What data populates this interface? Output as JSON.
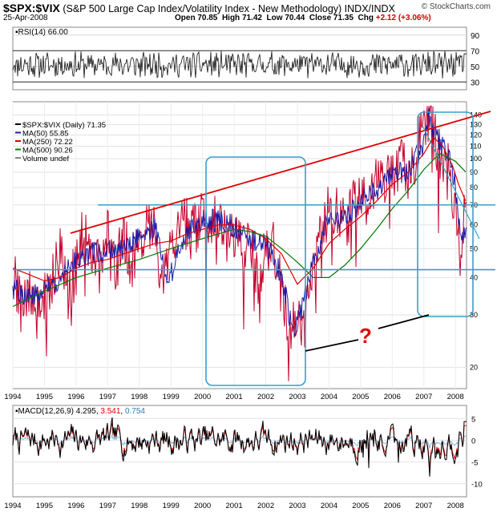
{
  "header": {
    "symbol": "$SPX:$VIX",
    "description": "(S&P 500 Large Cap Index/Volatility Index - New Methodology) INDX/INDX",
    "date": "25-Apr-2008",
    "open_label": "Open",
    "open": "70.85",
    "high_label": "High",
    "high": "71.42",
    "low_label": "Low",
    "low": "70.44",
    "close_label": "Close",
    "close": "71.35",
    "chg_label": "Chg",
    "chg": "+2.12 (+3.06%)",
    "watermark": "© StockCharts.com"
  },
  "chart_data": [
    {
      "type": "line",
      "panel": "RSI",
      "label": "RSI(14) 66.00",
      "y_ticks": [
        30,
        50,
        70,
        90
      ],
      "reference_lines": [
        30,
        70
      ],
      "last": 66.0,
      "ylim": [
        20,
        100
      ],
      "x_ticks": [
        "1994",
        "1995",
        "1996",
        "1997",
        "1998",
        "1999",
        "2000",
        "2001",
        "2002",
        "2003",
        "2004",
        "2005",
        "2006",
        "2007",
        "2008"
      ]
    },
    {
      "type": "line",
      "panel": "Price",
      "log_scale": true,
      "ylim": [
        17,
        155
      ],
      "y_ticks": [
        20,
        30,
        40,
        50,
        60,
        70,
        80,
        90,
        100,
        110,
        120,
        130,
        140
      ],
      "legend": [
        {
          "label": "$SPX:$VIX (Daily) 71.35",
          "color": "#000000"
        },
        {
          "label": "MA(50) 55.85",
          "color": "#1a1aa6"
        },
        {
          "label": "MA(250) 72.22",
          "color": "#dd0000"
        },
        {
          "label": "MA(500) 90.26",
          "color": "#007a00"
        },
        {
          "label": "Volume undef",
          "color": "#888888"
        }
      ],
      "series": [
        {
          "name": "$SPX:$VIX (Daily)",
          "color": "#c4002a",
          "x": [
            1994.0,
            1994.25,
            1994.5,
            1994.75,
            1995.0,
            1995.25,
            1995.5,
            1995.75,
            1996.0,
            1996.25,
            1996.5,
            1996.75,
            1997.0,
            1997.25,
            1997.5,
            1997.75,
            1998.0,
            1998.25,
            1998.5,
            1998.75,
            1999.0,
            1999.25,
            1999.5,
            1999.75,
            2000.0,
            2000.25,
            2000.5,
            2000.75,
            2001.0,
            2001.25,
            2001.5,
            2001.75,
            2002.0,
            2002.25,
            2002.5,
            2002.75,
            2003.0,
            2003.25,
            2003.5,
            2003.75,
            2004.0,
            2004.25,
            2004.5,
            2004.75,
            2005.0,
            2005.25,
            2005.5,
            2005.75,
            2006.0,
            2006.25,
            2006.5,
            2006.75,
            2007.0,
            2007.1,
            2007.25,
            2007.5,
            2007.75,
            2008.0,
            2008.15,
            2008.32
          ],
          "values": [
            41,
            32,
            38,
            30,
            34,
            40,
            48,
            38,
            44,
            58,
            48,
            42,
            55,
            42,
            54,
            44,
            50,
            60,
            56,
            34,
            54,
            58,
            62,
            58,
            66,
            60,
            64,
            58,
            56,
            50,
            52,
            40,
            46,
            50,
            36,
            26,
            28,
            30,
            46,
            56,
            68,
            66,
            60,
            68,
            78,
            70,
            86,
            80,
            90,
            96,
            88,
            104,
            125,
            140,
            126,
            102,
            95,
            68,
            48,
            71.35
          ]
        },
        {
          "name": "MA(50)",
          "color": "#1a1aa6",
          "x": [
            1994.0,
            1994.5,
            1995.0,
            1995.5,
            1996.0,
            1996.5,
            1997.0,
            1997.5,
            1998.0,
            1998.5,
            1998.9,
            1999.5,
            2000.0,
            2000.5,
            2000.9,
            2001.5,
            2002.0,
            2002.5,
            2002.85,
            2003.1,
            2003.5,
            2004.0,
            2004.5,
            2005.0,
            2005.5,
            2006.0,
            2006.5,
            2007.0,
            2007.15,
            2007.5,
            2007.8,
            2008.0,
            2008.15,
            2008.32
          ],
          "values": [
            37,
            34,
            36,
            40,
            46,
            48,
            49,
            50,
            55,
            58,
            38,
            56,
            62,
            62,
            60,
            54,
            52,
            40,
            26,
            30,
            44,
            64,
            62,
            72,
            78,
            88,
            92,
            112,
            136,
            112,
            100,
            80,
            54,
            55.85
          ]
        },
        {
          "name": "MA(250)",
          "color": "#dd0000",
          "x": [
            1994.0,
            1994.5,
            1995.0,
            1995.5,
            1996.0,
            1996.5,
            1997.0,
            1997.5,
            1998.0,
            1998.5,
            1999.0,
            1999.5,
            2000.0,
            2000.5,
            2001.0,
            2001.5,
            2002.0,
            2002.5,
            2003.0,
            2003.5,
            2004.0,
            2004.5,
            2005.0,
            2005.5,
            2006.0,
            2006.5,
            2007.0,
            2007.3,
            2007.6,
            2007.9,
            2008.1,
            2008.32
          ],
          "values": [
            43,
            41,
            39,
            40,
            43,
            45,
            46,
            48,
            50,
            52,
            53,
            56,
            58,
            60,
            60,
            58,
            54,
            48,
            38,
            43,
            52,
            58,
            64,
            72,
            82,
            90,
            104,
            118,
            110,
            95,
            82,
            72.22
          ]
        },
        {
          "name": "MA(500)",
          "color": "#007a00",
          "x": [
            1994.0,
            1995.0,
            1996.0,
            1997.0,
            1998.0,
            1999.0,
            2000.0,
            2000.5,
            2001.0,
            2001.5,
            2002.0,
            2002.5,
            2003.0,
            2003.5,
            2004.0,
            2004.5,
            2005.0,
            2005.5,
            2006.0,
            2006.5,
            2007.0,
            2007.5,
            2008.0,
            2008.32
          ],
          "values": [
            32,
            36,
            40,
            43,
            46,
            50,
            54,
            56,
            58,
            57,
            55,
            50,
            45,
            40,
            40,
            44,
            50,
            58,
            68,
            78,
            92,
            104,
            98,
            90.26
          ]
        }
      ],
      "annotations": {
        "horizontal_lines": [
          42.5,
          70
        ],
        "question_mark": "?"
      }
    },
    {
      "type": "line",
      "panel": "MACD",
      "label_prefix": "MACD(12,26,9)",
      "label_value1": "4.295",
      "label_value2": "3.541",
      "label_value3": "0.754",
      "y_ticks": [
        5,
        0,
        -5,
        -10
      ],
      "ylim": [
        -13,
        8
      ],
      "x_ticks": [
        "1994",
        "1995",
        "1996",
        "1997",
        "1998",
        "1999",
        "2000",
        "2001",
        "2002",
        "2003",
        "2004",
        "2005",
        "2006",
        "2007",
        "2008"
      ]
    }
  ],
  "colors": {
    "price": "#c4002a",
    "ma50": "#1a1aa6",
    "ma250": "#dd0000",
    "ma500": "#007a00",
    "box": "#35a0c8",
    "trend": "#e00000"
  }
}
